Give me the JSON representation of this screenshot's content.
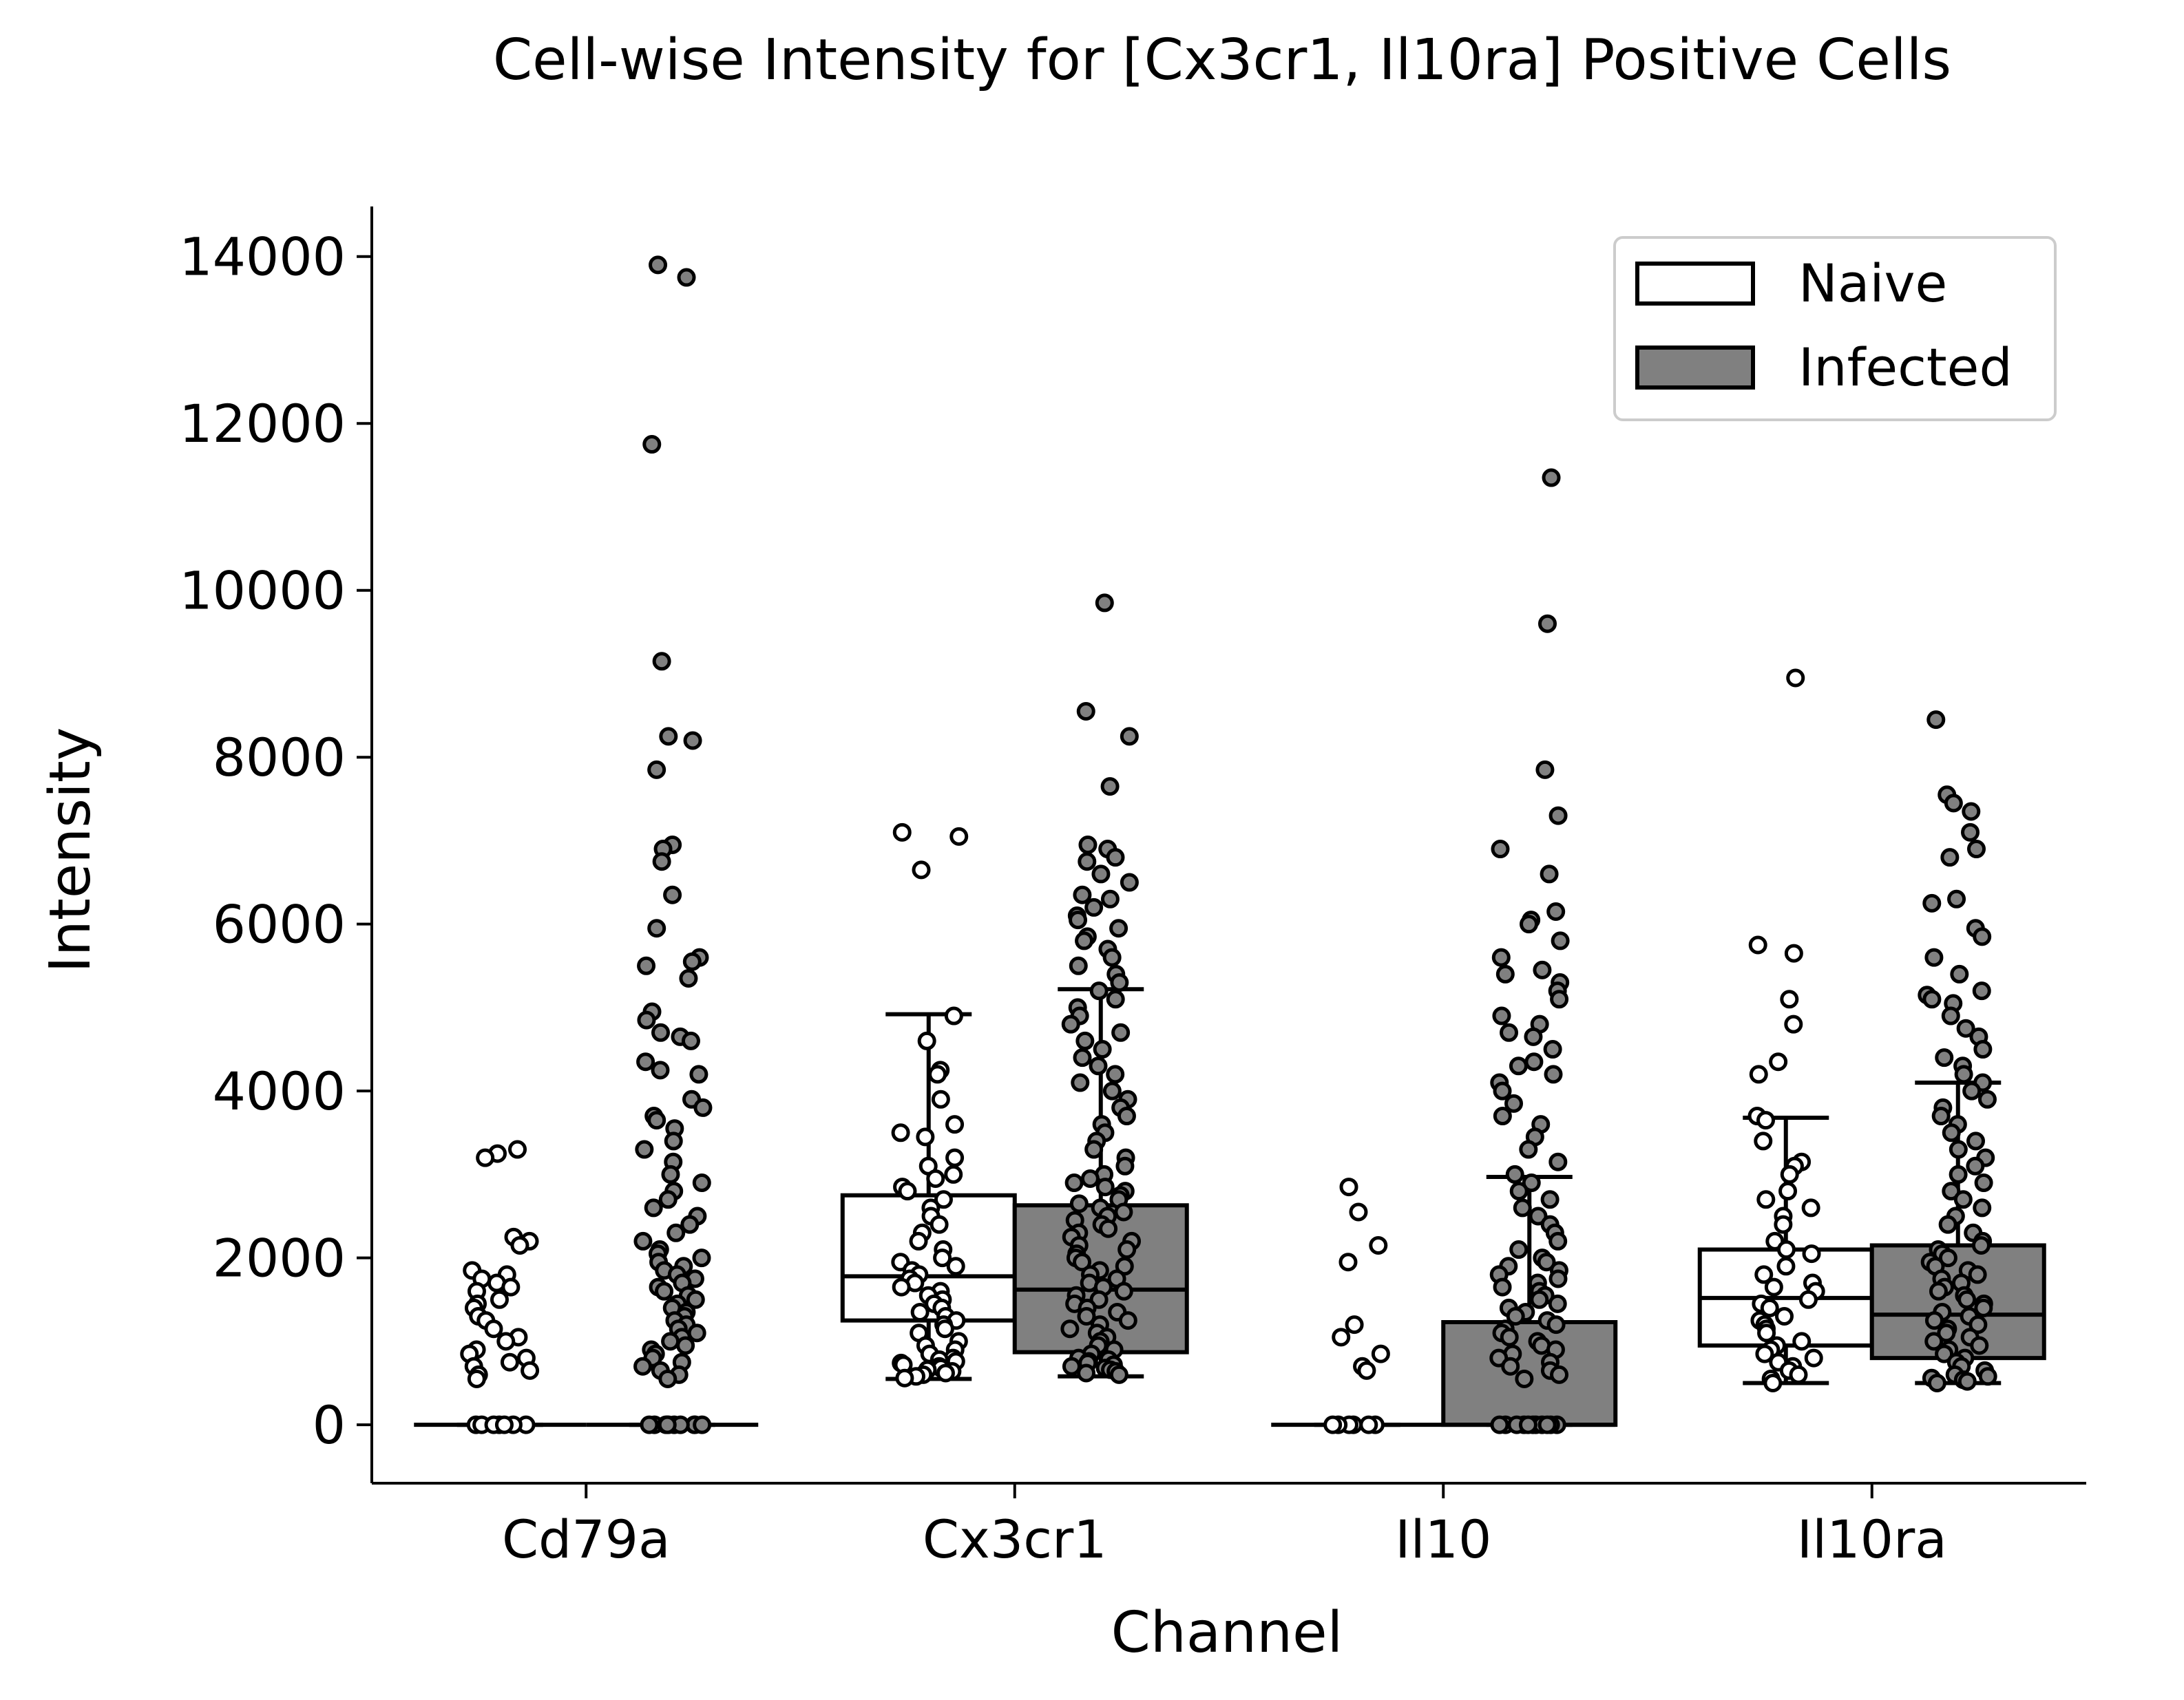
{
  "chart_data": {
    "type": "box",
    "title": "Cell-wise Intensity for [Cx3cr1, Il10ra] Positive Cells",
    "xlabel": "Channel",
    "ylabel": "Intensity",
    "ylim": [
      -700,
      14600
    ],
    "yticks": [
      0,
      2000,
      4000,
      6000,
      8000,
      10000,
      12000,
      14000
    ],
    "categories": [
      "Cd79a",
      "Cx3cr1",
      "Il10",
      "Il10ra"
    ],
    "legend": {
      "position": "top-right",
      "entries": [
        "Naive",
        "Infected"
      ]
    },
    "grid": false,
    "series": [
      {
        "name": "Naive",
        "color": "#ffffff",
        "boxes": [
          {
            "whisker_low": 0,
            "q1": 0,
            "median": 0,
            "q3": 0,
            "whisker_high": 0,
            "points": [
              3300,
              3250,
              3200,
              2250,
              2200,
              2150,
              1850,
              1800,
              1750,
              1700,
              1650,
              1600,
              1500,
              1450,
              1400,
              1300,
              1250,
              1150,
              1050,
              1000,
              900,
              850,
              800,
              750,
              700,
              650,
              600,
              550,
              0,
              0,
              0,
              0,
              0,
              0,
              0
            ]
          },
          {
            "whisker_low": 550,
            "q1": 1250,
            "median": 1780,
            "q3": 2750,
            "whisker_high": 4920,
            "points": [
              7100,
              7050,
              6650,
              4900,
              4600,
              4250,
              4200,
              3900,
              3600,
              3500,
              3450,
              3200,
              3100,
              3000,
              2950,
              2850,
              2800,
              2700,
              2600,
              2500,
              2400,
              2300,
              2200,
              2100,
              2000,
              1950,
              1900,
              1850,
              1800,
              1750,
              1700,
              1650,
              1600,
              1550,
              1500,
              1450,
              1400,
              1350,
              1300,
              1250,
              1200,
              1150,
              1100,
              1000,
              950,
              900,
              850,
              800,
              780,
              760,
              740,
              720,
              700,
              680,
              660,
              640,
              620,
              600,
              580,
              560
            ]
          },
          {
            "whisker_low": 0,
            "q1": 0,
            "median": 0,
            "q3": 0,
            "whisker_high": 0,
            "points": [
              2850,
              2550,
              2150,
              1950,
              1200,
              1050,
              850,
              700,
              650,
              0,
              0,
              0,
              0,
              0,
              0
            ]
          },
          {
            "whisker_low": 500,
            "q1": 950,
            "median": 1520,
            "q3": 2100,
            "whisker_high": 3680,
            "points": [
              8950,
              5750,
              5650,
              5100,
              4800,
              4350,
              4200,
              3700,
              3650,
              3400,
              3150,
              3100,
              3000,
              2800,
              2700,
              2600,
              2500,
              2400,
              2200,
              2100,
              2050,
              1900,
              1800,
              1700,
              1650,
              1600,
              1500,
              1450,
              1400,
              1300,
              1250,
              1200,
              1150,
              1100,
              1000,
              950,
              900,
              850,
              800,
              750,
              700,
              650,
              600,
              550,
              500
            ]
          }
        ]
      },
      {
        "name": "Infected",
        "color": "#808080",
        "boxes": [
          {
            "whisker_low": 0,
            "q1": 0,
            "median": 0,
            "q3": 0,
            "whisker_high": 0,
            "points": [
              13900,
              13750,
              11750,
              9150,
              8250,
              8200,
              7850,
              6950,
              6900,
              6750,
              6350,
              5950,
              5600,
              5550,
              5500,
              5350,
              4950,
              4850,
              4700,
              4650,
              4600,
              4350,
              4250,
              4200,
              3900,
              3800,
              3700,
              3650,
              3550,
              3400,
              3300,
              3150,
              3000,
              2900,
              2800,
              2700,
              2600,
              2500,
              2400,
              2300,
              2200,
              2100,
              2050,
              2000,
              1950,
              1900,
              1850,
              1800,
              1750,
              1700,
              1650,
              1600,
              1550,
              1500,
              1450,
              1400,
              1350,
              1300,
              1250,
              1200,
              1150,
              1100,
              1050,
              1000,
              950,
              900,
              850,
              800,
              750,
              700,
              650,
              600,
              550,
              0,
              0,
              0,
              0,
              0,
              0,
              0,
              0,
              0,
              0
            ]
          },
          {
            "whisker_low": 580,
            "q1": 870,
            "median": 1620,
            "q3": 2630,
            "whisker_high": 5220,
            "points": [
              9850,
              8550,
              8250,
              7650,
              6950,
              6900,
              6800,
              6750,
              6600,
              6500,
              6350,
              6300,
              6200,
              6100,
              6050,
              5950,
              5850,
              5800,
              5700,
              5600,
              5500,
              5400,
              5300,
              5200,
              5100,
              5000,
              4900,
              4800,
              4700,
              4600,
              4500,
              4400,
              4300,
              4200,
              4100,
              4000,
              3900,
              3800,
              3700,
              3600,
              3500,
              3400,
              3300,
              3200,
              3100,
              3000,
              2950,
              2900,
              2850,
              2800,
              2750,
              2700,
              2650,
              2600,
              2550,
              2500,
              2450,
              2400,
              2350,
              2300,
              2250,
              2200,
              2150,
              2100,
              2050,
              2000,
              1950,
              1900,
              1850,
              1800,
              1750,
              1700,
              1650,
              1600,
              1550,
              1500,
              1450,
              1400,
              1350,
              1300,
              1250,
              1200,
              1150,
              1100,
              1050,
              1000,
              950,
              900,
              850,
              800,
              780,
              760,
              740,
              720,
              700,
              680,
              660,
              640,
              620,
              600
            ]
          },
          {
            "whisker_low": 0,
            "q1": 0,
            "median": 0,
            "q3": 1230,
            "whisker_high": 2970,
            "points": [
              11350,
              9600,
              7850,
              7300,
              6900,
              6600,
              6150,
              6050,
              6000,
              5800,
              5600,
              5450,
              5400,
              5300,
              5200,
              5100,
              4900,
              4800,
              4700,
              4650,
              4500,
              4350,
              4300,
              4200,
              4100,
              4000,
              3850,
              3700,
              3600,
              3450,
              3300,
              3150,
              3000,
              2900,
              2800,
              2700,
              2600,
              2500,
              2400,
              2300,
              2200,
              2100,
              2000,
              1950,
              1900,
              1850,
              1800,
              1750,
              1700,
              1650,
              1600,
              1550,
              1500,
              1450,
              1400,
              1350,
              1300,
              1250,
              1200,
              1150,
              1100,
              1050,
              1000,
              950,
              900,
              850,
              800,
              750,
              700,
              650,
              600,
              550,
              0,
              0,
              0,
              0,
              0,
              0,
              0,
              0,
              0,
              0,
              0
            ]
          },
          {
            "whisker_low": 500,
            "q1": 800,
            "median": 1320,
            "q3": 2150,
            "whisker_high": 4100,
            "points": [
              8450,
              7550,
              7450,
              7350,
              7100,
              6900,
              6800,
              6300,
              6250,
              5950,
              5850,
              5600,
              5400,
              5200,
              5150,
              5100,
              5050,
              4900,
              4750,
              4650,
              4500,
              4400,
              4300,
              4200,
              4100,
              4000,
              3900,
              3800,
              3700,
              3600,
              3500,
              3400,
              3300,
              3200,
              3100,
              3000,
              2900,
              2800,
              2700,
              2600,
              2500,
              2400,
              2300,
              2200,
              2150,
              2100,
              2050,
              2000,
              1950,
              1900,
              1850,
              1800,
              1750,
              1700,
              1650,
              1600,
              1550,
              1500,
              1450,
              1400,
              1350,
              1300,
              1250,
              1200,
              1150,
              1100,
              1050,
              1000,
              950,
              900,
              850,
              800,
              750,
              700,
              650,
              600,
              580,
              560,
              540,
              520,
              500
            ]
          }
        ]
      }
    ]
  }
}
